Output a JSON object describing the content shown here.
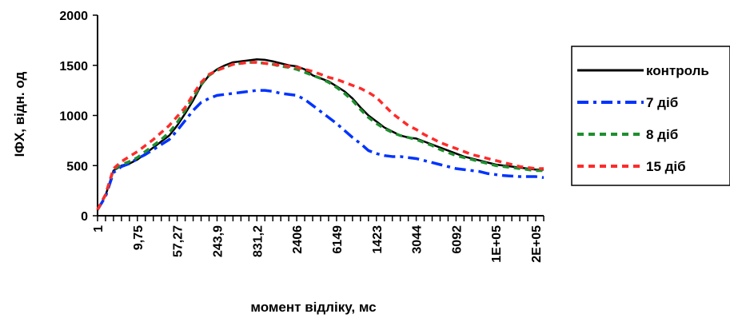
{
  "chart_data": {
    "type": "line",
    "xlabel": "момент відліку, мс",
    "ylabel": "ІФХ, відн. од",
    "ylim": [
      0,
      2000
    ],
    "yticks": [
      0,
      500,
      1000,
      1500,
      2000
    ],
    "x_tick_labels": [
      "1",
      "9,75",
      "57,27",
      "243,9",
      "831,2",
      "2406",
      "6149",
      "1423",
      "3044",
      "6092",
      "1E+05",
      "2E+05"
    ],
    "x_tick_label_positions": [
      0,
      5,
      10,
      15,
      20,
      25,
      30,
      35,
      40,
      45,
      50,
      55
    ],
    "x_point_count": 57,
    "legend": {
      "position": "right"
    },
    "series": [
      {
        "name": "контроль",
        "color": "#000000",
        "style": "solid",
        "values": [
          60,
          200,
          450,
          500,
          520,
          560,
          620,
          680,
          740,
          800,
          900,
          1020,
          1150,
          1300,
          1400,
          1460,
          1500,
          1530,
          1540,
          1550,
          1560,
          1555,
          1540,
          1520,
          1500,
          1490,
          1460,
          1400,
          1370,
          1340,
          1290,
          1240,
          1170,
          1080,
          1000,
          940,
          880,
          840,
          800,
          780,
          770,
          740,
          710,
          680,
          650,
          620,
          590,
          570,
          550,
          530,
          510,
          500,
          490,
          480,
          470,
          460,
          460
        ]
      },
      {
        "name": "7 діб",
        "color": "#0033ff",
        "style": "dashdot",
        "values": [
          60,
          190,
          430,
          490,
          520,
          570,
          610,
          660,
          710,
          760,
          850,
          950,
          1050,
          1130,
          1170,
          1200,
          1210,
          1220,
          1230,
          1240,
          1250,
          1250,
          1240,
          1220,
          1210,
          1200,
          1160,
          1100,
          1040,
          980,
          920,
          850,
          780,
          720,
          650,
          620,
          600,
          590,
          590,
          580,
          570,
          550,
          530,
          510,
          490,
          470,
          460,
          450,
          440,
          420,
          410,
          400,
          395,
          390,
          390,
          390,
          380
        ]
      },
      {
        "name": "8 діб",
        "color": "#1f8f2f",
        "style": "dotted",
        "values": [
          60,
          210,
          460,
          510,
          540,
          580,
          640,
          700,
          760,
          830,
          930,
          1050,
          1180,
          1310,
          1400,
          1450,
          1480,
          1510,
          1520,
          1530,
          1530,
          1520,
          1510,
          1490,
          1480,
          1460,
          1430,
          1400,
          1370,
          1330,
          1280,
          1220,
          1150,
          1060,
          980,
          920,
          870,
          830,
          800,
          780,
          760,
          730,
          700,
          660,
          630,
          600,
          580,
          560,
          540,
          520,
          500,
          490,
          480,
          470,
          460,
          450,
          450
        ]
      },
      {
        "name": "15 діб",
        "color": "#ff2b2b",
        "style": "dashed",
        "values": [
          60,
          210,
          470,
          540,
          590,
          640,
          700,
          760,
          830,
          900,
          990,
          1080,
          1210,
          1330,
          1410,
          1450,
          1480,
          1510,
          1520,
          1530,
          1530,
          1520,
          1510,
          1500,
          1490,
          1480,
          1460,
          1440,
          1410,
          1380,
          1360,
          1330,
          1300,
          1270,
          1230,
          1180,
          1100,
          1020,
          960,
          900,
          860,
          810,
          770,
          730,
          700,
          670,
          640,
          610,
          590,
          570,
          550,
          530,
          510,
          490,
          480,
          470,
          470
        ]
      }
    ]
  }
}
